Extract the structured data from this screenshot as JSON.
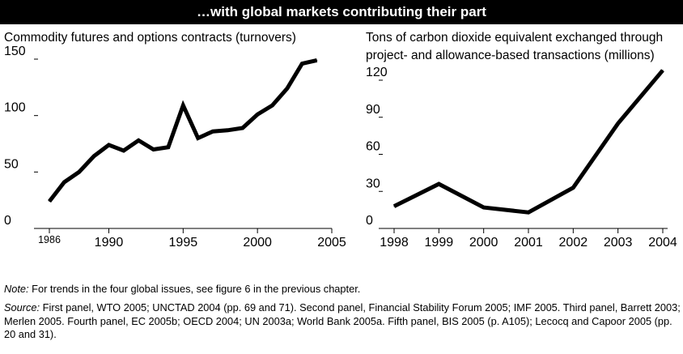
{
  "header": {
    "title": "…with global markets contributing their part"
  },
  "chart_data": [
    {
      "type": "line",
      "title": "Commodity futures and options contracts (turnovers)",
      "xlabel": "",
      "ylabel": "",
      "x": [
        1986,
        1987,
        1988,
        1989,
        1990,
        1991,
        1992,
        1993,
        1994,
        1995,
        1996,
        1997,
        1998,
        1999,
        2000,
        2001,
        2002,
        2003,
        2004
      ],
      "series": [
        {
          "values": [
            24,
            41,
            50,
            64,
            74,
            69,
            78,
            70,
            72,
            109,
            80,
            86,
            87,
            89,
            101,
            109,
            124,
            146,
            149
          ]
        }
      ],
      "xticks": [
        "1986",
        "1990",
        "1995",
        "2000",
        "2005"
      ],
      "yticks": [
        "0",
        "50",
        "100",
        "150"
      ],
      "xlim": [
        1986,
        2005
      ],
      "ylim": [
        0,
        150
      ],
      "grid": false,
      "color": "#000000"
    },
    {
      "type": "line",
      "title": "Tons of carbon dioxide equivalent exchanged through project- and allowance-based transactions (millions)",
      "title_lines": [
        "Tons of carbon dioxide equivalent exchanged through",
        "project- and allowance-based transactions (millions)"
      ],
      "xlabel": "",
      "ylabel": "",
      "x": [
        1998,
        1999,
        2000,
        2001,
        2002,
        2003,
        2004
      ],
      "series": [
        {
          "values": [
            18,
            36,
            17,
            13,
            33,
            85,
            128
          ]
        }
      ],
      "xticks": [
        "1998",
        "1999",
        "2000",
        "2001",
        "2002",
        "2003",
        "2004"
      ],
      "yticks": [
        "0",
        "30",
        "60",
        "90",
        "120"
      ],
      "xlim": [
        1998,
        2004
      ],
      "ylim": [
        0,
        120
      ],
      "grid": false,
      "color": "#000000"
    }
  ],
  "note": {
    "label": "Note:",
    "text": " For trends in the four global issues, see figure 6 in the previous chapter."
  },
  "source": {
    "label": "Source:",
    "text": " First panel, WTO 2005; UNCTAD 2004 (pp. 69 and 71). Second panel, Financial Stability Forum 2005; IMF 2005. Third panel, Barrett 2003; Merlen 2005. Fourth panel, EC 2005b; OECD 2004; UN 2003a; World Bank 2005a. Fifth panel, BIS 2005 (p. A105); Lecocq and Capoor 2005 (pp. 20 and 31)."
  }
}
